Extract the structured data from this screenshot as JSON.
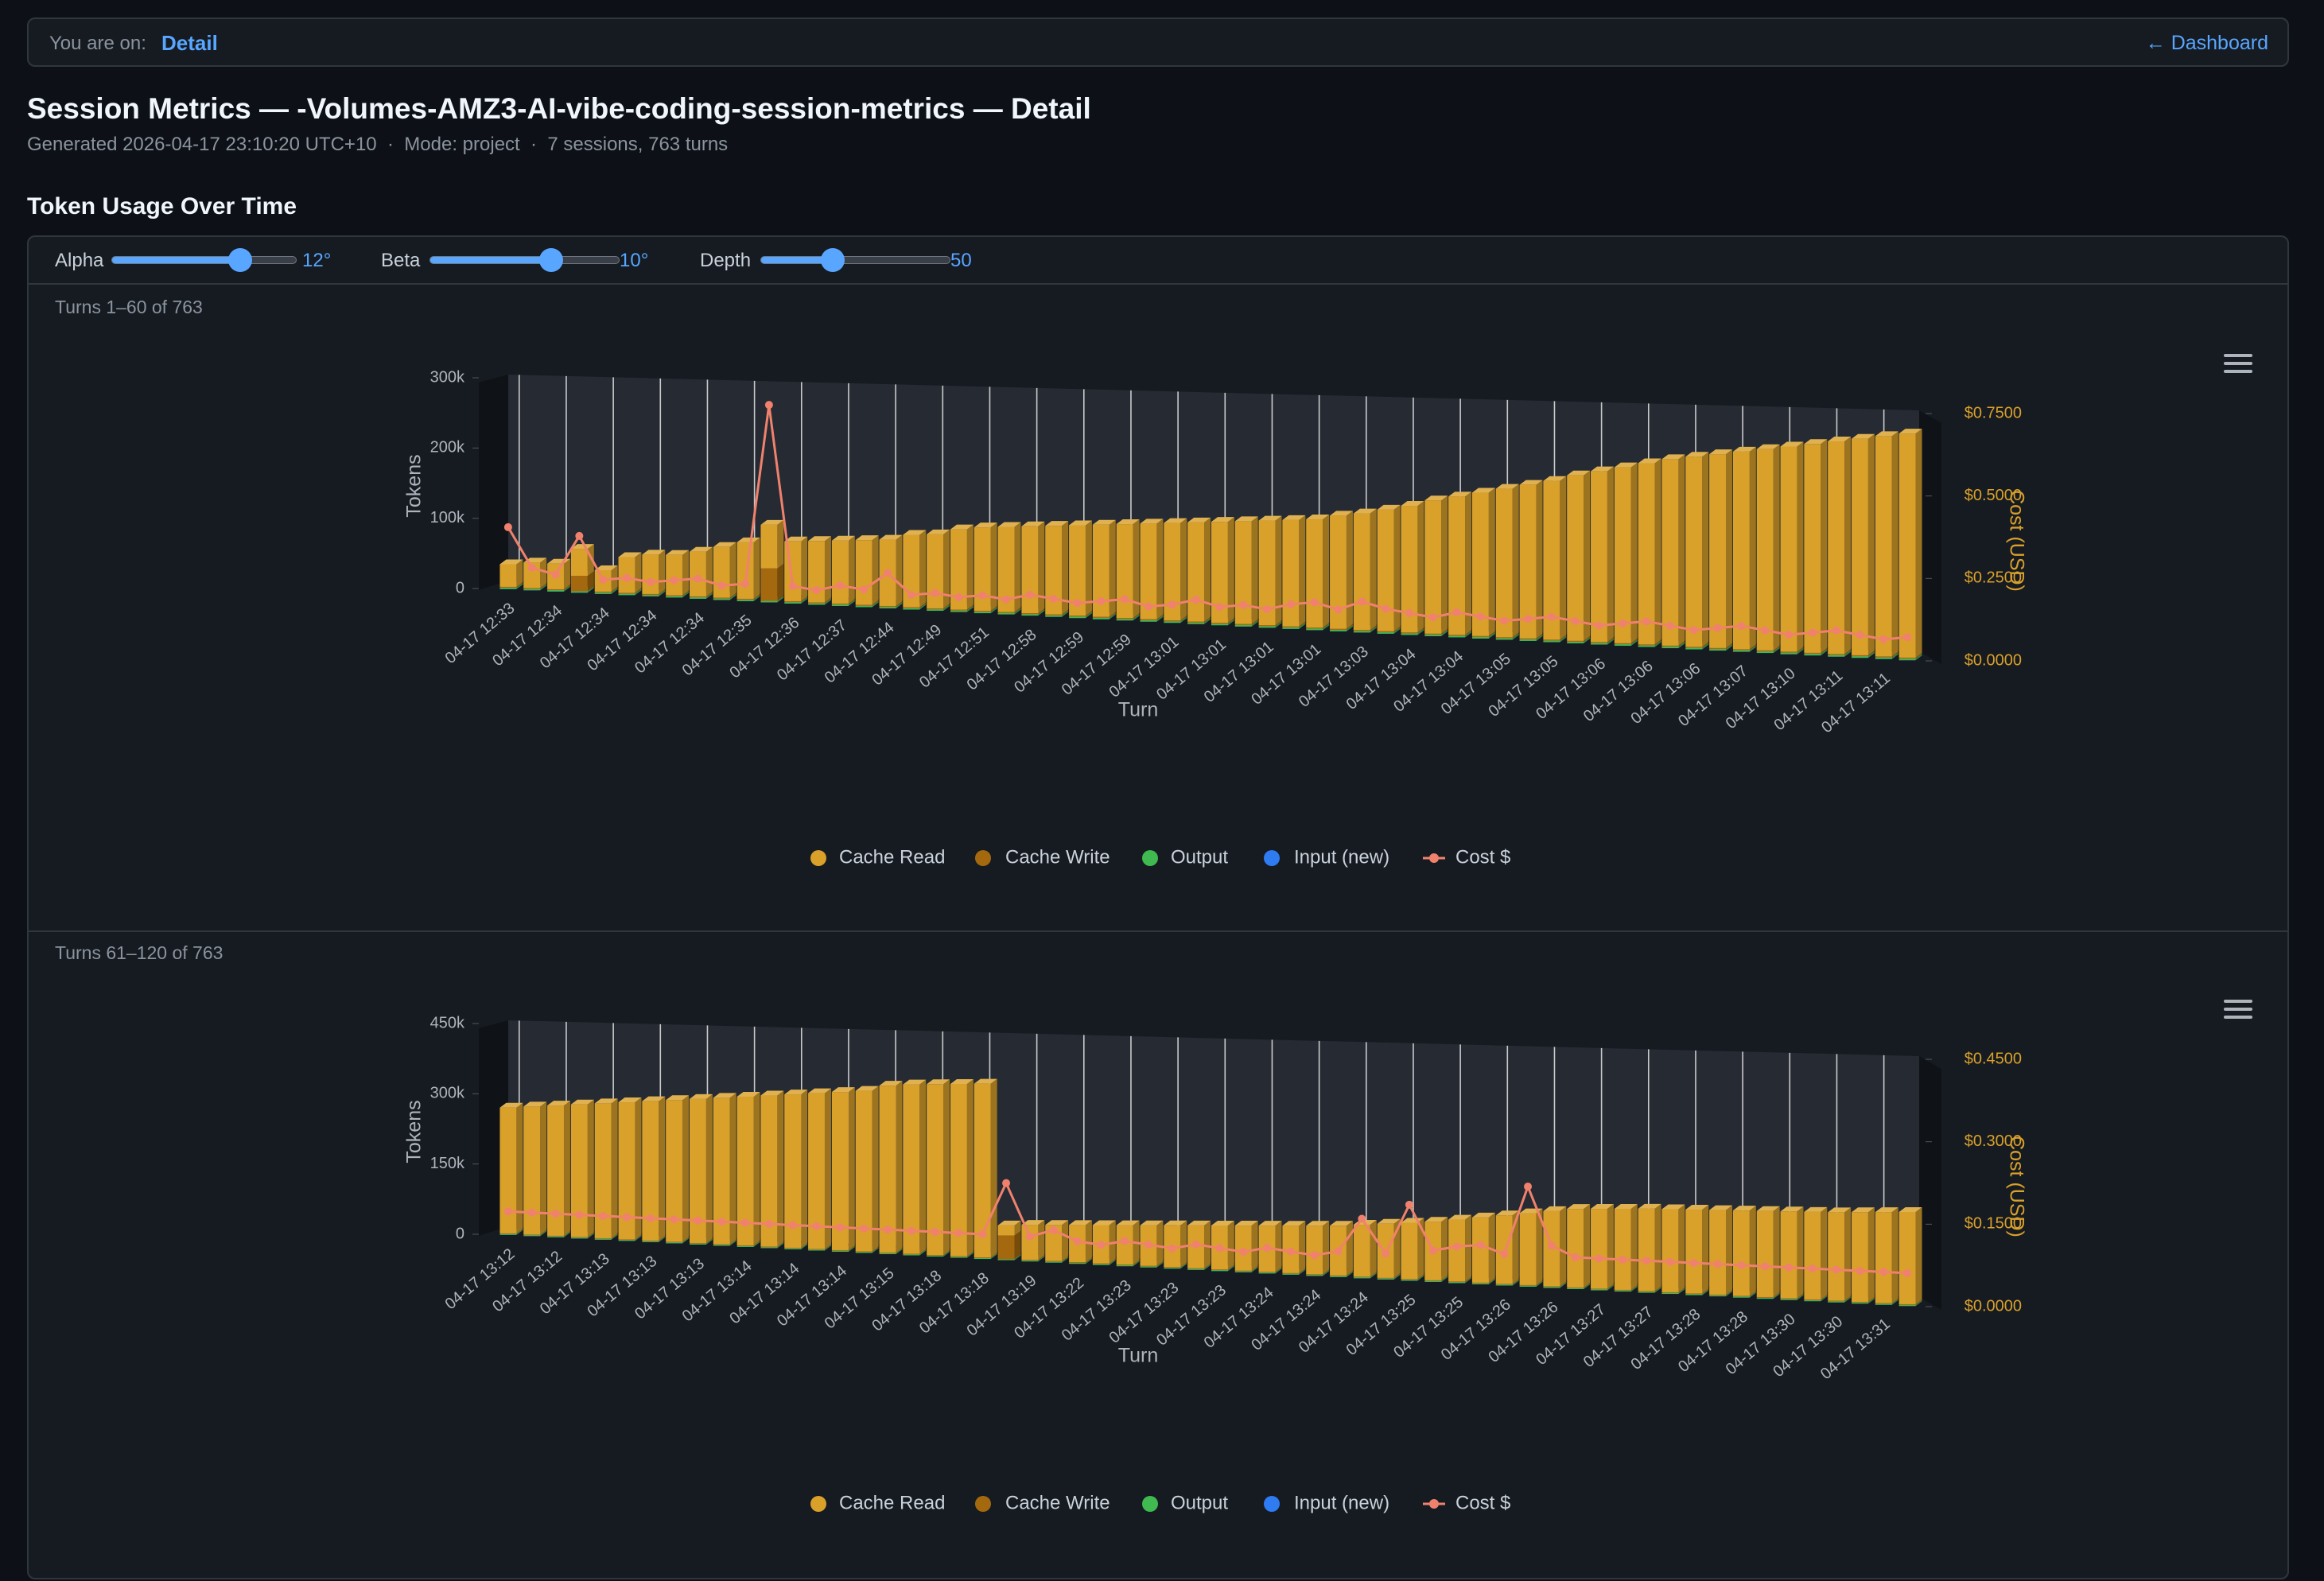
{
  "nav": {
    "label": "You are on:",
    "current": "Detail",
    "back": "← Dashboard"
  },
  "header": {
    "title": "Session Metrics — -Volumes-AMZ3-AI-vibe-coding-session-metrics — Detail",
    "subtitle": "Generated 2026-04-17 23:10:20 UTC+10  ·  Mode: project  ·  7 sessions, 763 turns"
  },
  "section": {
    "title": "Token Usage Over Time"
  },
  "controls": [
    {
      "label": "Alpha",
      "value": "12°"
    },
    {
      "label": "Beta",
      "value": "10°"
    },
    {
      "label": "Depth",
      "value": "50"
    }
  ],
  "chart_data": [
    {
      "type": "bar",
      "title": "Turns 1–60 of 763",
      "xlabel": "Turn",
      "ylabel": "Tokens",
      "y2label": "Cost (USD)",
      "stacked": true,
      "xgrid": true,
      "legend": "bottom",
      "categories": [
        "04-17 12:33",
        null,
        "04-17 12:34",
        null,
        "04-17 12:34",
        null,
        "04-17 12:34",
        null,
        "04-17 12:34",
        null,
        "04-17 12:35",
        null,
        "04-17 12:36",
        null,
        "04-17 12:37",
        null,
        "04-17 12:44",
        null,
        "04-17 12:49",
        null,
        "04-17 12:51",
        null,
        "04-17 12:58",
        null,
        "04-17 12:59",
        null,
        "04-17 12:59",
        null,
        "04-17 13:01",
        null,
        "04-17 13:01",
        null,
        "04-17 13:01",
        null,
        "04-17 13:01",
        null,
        "04-17 13:03",
        null,
        "04-17 13:04",
        null,
        "04-17 13:04",
        null,
        "04-17 13:05",
        null,
        "04-17 13:05",
        null,
        "04-17 13:06",
        null,
        "04-17 13:06",
        null,
        "04-17 13:06",
        null,
        "04-17 13:07",
        null,
        "04-17 13:10",
        null,
        "04-17 13:11",
        null,
        "04-17 13:11",
        null
      ],
      "series": [
        {
          "name": "Cache Read",
          "color": "#d9a02a",
          "values": [
            32000,
            36000,
            36000,
            38000,
            30000,
            50000,
            55000,
            56000,
            62000,
            70000,
            78000,
            60000,
            82000,
            84000,
            86000,
            88000,
            90000,
            98000,
            100000,
            108000,
            112000,
            114000,
            116000,
            118000,
            120000,
            122000,
            124000,
            126000,
            128000,
            130000,
            132000,
            134000,
            136000,
            138000,
            140000,
            146000,
            150000,
            156000,
            162000,
            170000,
            176000,
            182000,
            188000,
            194000,
            200000,
            208000,
            214000,
            220000,
            226000,
            232000,
            236000,
            240000,
            244000,
            248000,
            252000,
            256000,
            260000,
            264000,
            268000,
            272000
          ]
        },
        {
          "name": "Cache Write",
          "color": "#a4690f",
          "values": [
            1500,
            1500,
            1500,
            22000,
            1500,
            1500,
            1500,
            1500,
            1500,
            1500,
            1500,
            45000,
            1500,
            1500,
            1500,
            1500,
            1500,
            1500,
            1500,
            1500,
            1500,
            1500,
            1500,
            1500,
            1500,
            1500,
            1500,
            1500,
            1500,
            1500,
            1500,
            1500,
            1500,
            1500,
            1500,
            1500,
            1500,
            1500,
            1500,
            1500,
            1500,
            1500,
            1500,
            1500,
            1500,
            1500,
            1500,
            1500,
            1500,
            1500,
            1500,
            1500,
            1500,
            1500,
            1500,
            1500,
            1500,
            1500,
            1500,
            1500
          ]
        },
        {
          "name": "Output",
          "color": "#3fb950",
          "values": [
            1800,
            1800,
            1800,
            1800,
            1800,
            1800,
            1800,
            1800,
            1800,
            1800,
            1800,
            1800,
            1800,
            1800,
            1800,
            1800,
            1800,
            1800,
            1800,
            1800,
            1800,
            1800,
            1800,
            1800,
            1800,
            1800,
            1800,
            1800,
            1800,
            1800,
            1800,
            1800,
            1800,
            1800,
            1800,
            1800,
            1800,
            1800,
            1800,
            1800,
            1800,
            1800,
            1800,
            1800,
            1800,
            1800,
            1800,
            1800,
            1800,
            1800,
            1800,
            1800,
            1800,
            1800,
            1800,
            1800,
            1800,
            1800,
            1800,
            1800
          ]
        },
        {
          "name": "Input (new)",
          "color": "#2f7bf2",
          "values": [
            80,
            80,
            80,
            80,
            80,
            80,
            80,
            80,
            80,
            80,
            80,
            80,
            80,
            80,
            80,
            80,
            80,
            80,
            80,
            80,
            80,
            80,
            80,
            80,
            80,
            80,
            80,
            80,
            80,
            80,
            80,
            80,
            80,
            80,
            80,
            80,
            80,
            80,
            80,
            80,
            80,
            80,
            80,
            80,
            80,
            80,
            80,
            80,
            80,
            80,
            80,
            80,
            80,
            80,
            80,
            80,
            80,
            80,
            80,
            80
          ]
        },
        {
          "name": "Cost $",
          "color": "#f0826d",
          "type": "line",
          "axis": "y2",
          "values": [
            0.22,
            0.08,
            0.06,
            0.2,
            0.05,
            0.06,
            0.05,
            0.06,
            0.07,
            0.05,
            0.06,
            0.68,
            0.06,
            0.05,
            0.07,
            0.06,
            0.12,
            0.05,
            0.06,
            0.05,
            0.06,
            0.05,
            0.07,
            0.06,
            0.05,
            0.06,
            0.07,
            0.05,
            0.06,
            0.08,
            0.06,
            0.07,
            0.06,
            0.08,
            0.09,
            0.07,
            0.1,
            0.08,
            0.07,
            0.06,
            0.08,
            0.07,
            0.06,
            0.07,
            0.08,
            0.07,
            0.06,
            0.07,
            0.08,
            0.07,
            0.06,
            0.07,
            0.08,
            0.07,
            0.06,
            0.07,
            0.08,
            0.07,
            0.06,
            0.07
          ]
        }
      ],
      "ylim": [
        0,
        300000
      ],
      "yticks": [
        0,
        {
          "value": 100000,
          "label": "100k"
        },
        {
          "value": 200000,
          "label": "200k"
        },
        {
          "value": 300000,
          "label": "300k"
        }
      ],
      "y2lim": [
        0,
        0.75
      ],
      "y2ticks": [
        {
          "value": 0,
          "label": "$0.0000"
        },
        {
          "value": 0.25,
          "label": "$0.2500"
        },
        {
          "value": 0.5,
          "label": "$0.5000"
        },
        {
          "value": 0.75,
          "label": "$0.7500"
        }
      ]
    },
    {
      "type": "bar",
      "title": "Turns 61–120 of 763",
      "xlabel": "Turn",
      "ylabel": "Tokens",
      "y2label": "Cost (USD)",
      "stacked": true,
      "xgrid": true,
      "legend": "bottom",
      "categories": [
        "04-17 13:12",
        null,
        "04-17 13:12",
        null,
        "04-17 13:13",
        null,
        "04-17 13:13",
        null,
        "04-17 13:13",
        null,
        "04-17 13:14",
        null,
        "04-17 13:14",
        null,
        "04-17 13:14",
        null,
        "04-17 13:15",
        null,
        "04-17 13:18",
        null,
        "04-17 13:18",
        null,
        "04-17 13:19",
        null,
        "04-17 13:22",
        null,
        "04-17 13:23",
        null,
        "04-17 13:23",
        null,
        "04-17 13:23",
        null,
        "04-17 13:24",
        null,
        "04-17 13:24",
        null,
        "04-17 13:24",
        null,
        "04-17 13:25",
        null,
        "04-17 13:25",
        null,
        "04-17 13:26",
        null,
        "04-17 13:26",
        null,
        "04-17 13:27",
        null,
        "04-17 13:27",
        null,
        "04-17 13:28",
        null,
        "04-17 13:28",
        null,
        "04-17 13:30",
        null,
        "04-17 13:30",
        null,
        "04-17 13:31",
        null
      ],
      "series": [
        {
          "name": "Cache Read",
          "color": "#d9a02a",
          "values": [
            268000,
            272000,
            276000,
            280000,
            284000,
            288000,
            292000,
            296000,
            300000,
            304000,
            308000,
            312000,
            316000,
            320000,
            324000,
            328000,
            340000,
            344000,
            346000,
            348000,
            350000,
            20000,
            70000,
            72000,
            74000,
            76000,
            78000,
            80000,
            82000,
            84000,
            86000,
            88000,
            90000,
            92000,
            94000,
            96000,
            100000,
            104000,
            108000,
            112000,
            118000,
            124000,
            130000,
            136000,
            142000,
            148000,
            150000,
            152000,
            154000,
            155000,
            156000,
            157000,
            158000,
            159000,
            160000,
            161000,
            162000,
            164000,
            166000,
            168000
          ]
        },
        {
          "name": "Cache Write",
          "color": "#a4690f",
          "values": [
            1500,
            1500,
            1500,
            1500,
            1500,
            1500,
            1500,
            1500,
            1500,
            1500,
            1500,
            1500,
            1500,
            1500,
            1500,
            1500,
            1500,
            1500,
            1500,
            1500,
            1500,
            48000,
            1500,
            1500,
            1500,
            1500,
            1500,
            1500,
            1500,
            1500,
            1500,
            1500,
            1500,
            1500,
            1500,
            1500,
            1500,
            1500,
            1500,
            1500,
            1500,
            1500,
            1500,
            1500,
            1500,
            1500,
            1500,
            1500,
            1500,
            1500,
            1500,
            1500,
            1500,
            1500,
            1500,
            1500,
            1500,
            1500,
            1500,
            1500
          ]
        },
        {
          "name": "Output",
          "color": "#3fb950",
          "values": [
            1800,
            1800,
            1800,
            1800,
            1800,
            1800,
            1800,
            1800,
            1800,
            1800,
            1800,
            1800,
            1800,
            1800,
            1800,
            1800,
            1800,
            1800,
            1800,
            1800,
            1800,
            1800,
            1800,
            1800,
            1800,
            1800,
            1800,
            1800,
            1800,
            1800,
            1800,
            1800,
            1800,
            1800,
            1800,
            1800,
            1800,
            1800,
            1800,
            1800,
            1800,
            1800,
            1800,
            1800,
            1800,
            1800,
            1800,
            1800,
            1800,
            1800,
            1800,
            1800,
            1800,
            1800,
            1800,
            1800,
            1800,
            1800,
            1800,
            1800
          ]
        },
        {
          "name": "Input (new)",
          "color": "#2f7bf2",
          "values": [
            80,
            80,
            80,
            80,
            80,
            80,
            80,
            80,
            80,
            80,
            80,
            80,
            80,
            80,
            80,
            80,
            80,
            80,
            80,
            80,
            80,
            80,
            80,
            80,
            80,
            80,
            80,
            80,
            80,
            80,
            80,
            80,
            80,
            80,
            80,
            80,
            80,
            80,
            80,
            80,
            80,
            80,
            80,
            80,
            80,
            80,
            80,
            80,
            80,
            80,
            80,
            80,
            80,
            80,
            80,
            80,
            80,
            80,
            80,
            80
          ]
        },
        {
          "name": "Cost $",
          "color": "#f0826d",
          "type": "line",
          "axis": "y2",
          "values": [
            0.05,
            0.05,
            0.05,
            0.05,
            0.05,
            0.05,
            0.05,
            0.05,
            0.05,
            0.05,
            0.05,
            0.05,
            0.05,
            0.05,
            0.05,
            0.05,
            0.05,
            0.05,
            0.05,
            0.05,
            0.05,
            0.155,
            0.05,
            0.065,
            0.045,
            0.04,
            0.05,
            0.045,
            0.04,
            0.05,
            0.045,
            0.04,
            0.05,
            0.045,
            0.04,
            0.05,
            0.115,
            0.05,
            0.146,
            0.06,
            0.07,
            0.075,
            0.06,
            0.19,
            0.08,
            0.06,
            0.06,
            0.06,
            0.06,
            0.06,
            0.06,
            0.06,
            0.06,
            0.06,
            0.06,
            0.06,
            0.06,
            0.06,
            0.06,
            0.06
          ]
        }
      ],
      "ylim": [
        0,
        450000
      ],
      "yticks": [
        0,
        {
          "value": 150000,
          "label": "150k"
        },
        {
          "value": 300000,
          "label": "300k"
        },
        {
          "value": 450000,
          "label": "450k"
        }
      ],
      "y2lim": [
        0,
        0.45
      ],
      "y2ticks": [
        {
          "value": 0,
          "label": "$0.0000"
        },
        {
          "value": 0.15,
          "label": "$0.1500"
        },
        {
          "value": 0.3,
          "label": "$0.3000"
        },
        {
          "value": 0.45,
          "label": "$0.4500"
        }
      ]
    }
  ]
}
